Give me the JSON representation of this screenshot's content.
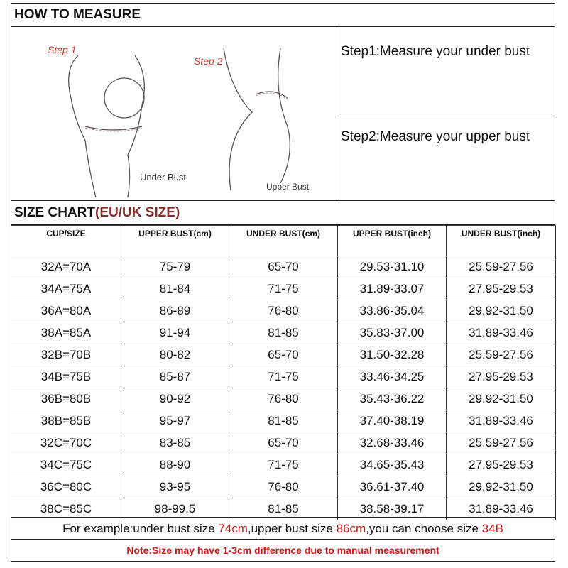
{
  "header": {
    "title": "HOW TO MEASURE"
  },
  "illustrations": {
    "step1_label": "Step 1",
    "step1_caption": "Under Bust",
    "step2_label": "Step 2",
    "step2_caption": "Upper Bust"
  },
  "steps": [
    {
      "text": "Step1:Measure your under bust"
    },
    {
      "text": "Step2:Measure your upper bust"
    }
  ],
  "size_chart": {
    "title": "SIZE CHART",
    "title_suffix": "(EU/UK SIZE)",
    "columns": [
      "CUP/SIZE",
      "UPPER BUST(cm)",
      "UNDER BUST(cm)",
      "UPPER BUST(inch)",
      "UNDER BUST(inch)"
    ],
    "rows": [
      [
        "32A=70A",
        "75-79",
        "65-70",
        "29.53-31.10",
        "25.59-27.56"
      ],
      [
        "34A=75A",
        "81-84",
        "71-75",
        "31.89-33.07",
        "27.95-29.53"
      ],
      [
        "36A=80A",
        "86-89",
        "76-80",
        "33.86-35.04",
        "29.92-31.50"
      ],
      [
        "38A=85A",
        "91-94",
        "81-85",
        "35.83-37.00",
        "31.89-33.46"
      ],
      [
        "32B=70B",
        "80-82",
        "65-70",
        "31.50-32.28",
        "25.59-27.56"
      ],
      [
        "34B=75B",
        "85-87",
        "71-75",
        "33.46-34.25",
        "27.95-29.53"
      ],
      [
        "36B=80B",
        "90-92",
        "76-80",
        "35.43-36.22",
        "29.92-31.50"
      ],
      [
        "38B=85B",
        "95-97",
        "81-85",
        "37.40-38.19",
        "31.89-33.46"
      ],
      [
        "32C=70C",
        "83-85",
        "65-70",
        "32.68-33.46",
        "25.59-27.56"
      ],
      [
        "34C=75C",
        "88-90",
        "71-75",
        "34.65-35.43",
        "27.95-29.53"
      ],
      [
        "36C=80C",
        "93-95",
        "76-80",
        "36.61-37.40",
        "29.92-31.50"
      ],
      [
        "38C=85C",
        "98-99.5",
        "81-85",
        "38.58-39.17",
        "31.89-33.46"
      ]
    ]
  },
  "example": {
    "p1": "For example:under bust size ",
    "v1": "74cm",
    "p2": ",upper bust size ",
    "v2": "86cm",
    "p3": ",you can choose size ",
    "v3": "34B"
  },
  "note": "Note:Size may have 1-3cm difference due to manual measurement",
  "colors": {
    "accent_red": "#d01818",
    "title_red": "#8b2a2a"
  }
}
